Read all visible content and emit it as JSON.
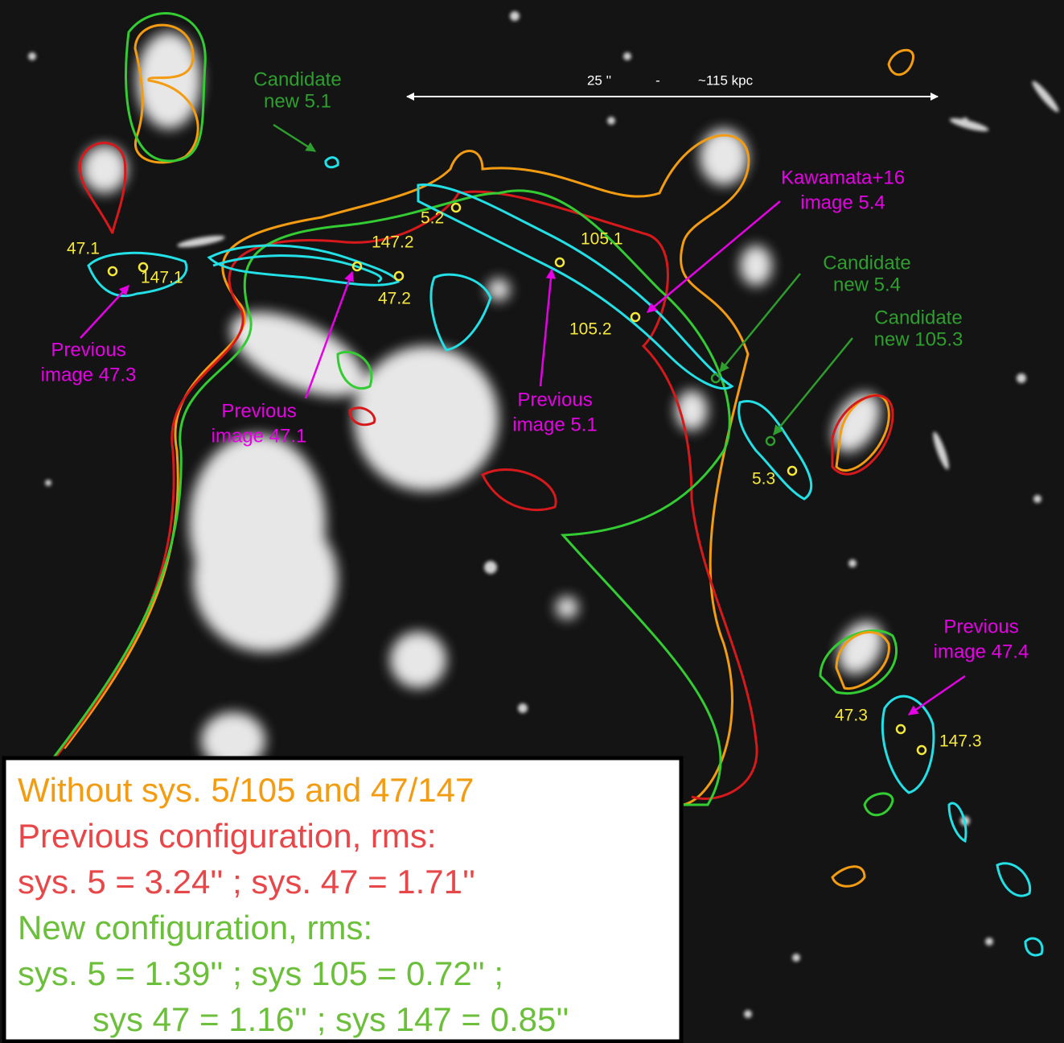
{
  "scale_bar": {
    "left": "25 ''",
    "dash": "-",
    "right": "~115 kpc"
  },
  "image_labels": [
    "47.1",
    "147.1",
    "147.2",
    "47.2",
    "5.2",
    "105.1",
    "105.2",
    "5.3",
    "47.3",
    "147.3"
  ],
  "magenta_annotations": [
    [
      "Kawamata+16",
      "image 5.4"
    ],
    [
      "Previous",
      "image 47.3"
    ],
    [
      "Previous",
      "image 47.1"
    ],
    [
      "Previous",
      "image 5.1"
    ],
    [
      "Previous",
      "image 47.4"
    ]
  ],
  "green_annotations": [
    [
      "Candidate",
      "new 5.1"
    ],
    [
      "Candidate",
      "new 5.4"
    ],
    [
      "Candidate",
      "new 105.3"
    ]
  ],
  "legend": [
    "Without sys. 5/105 and 47/147",
    "Previous configuration, rms:",
    "sys. 5 = 3.24'' ; sys. 47 = 1.71''",
    "New configuration, rms:",
    "sys. 5 = 1.39'' ; sys 105 = 0.72'' ;",
    "sys 47 = 1.16'' ; sys 147 = 0.85''"
  ]
}
